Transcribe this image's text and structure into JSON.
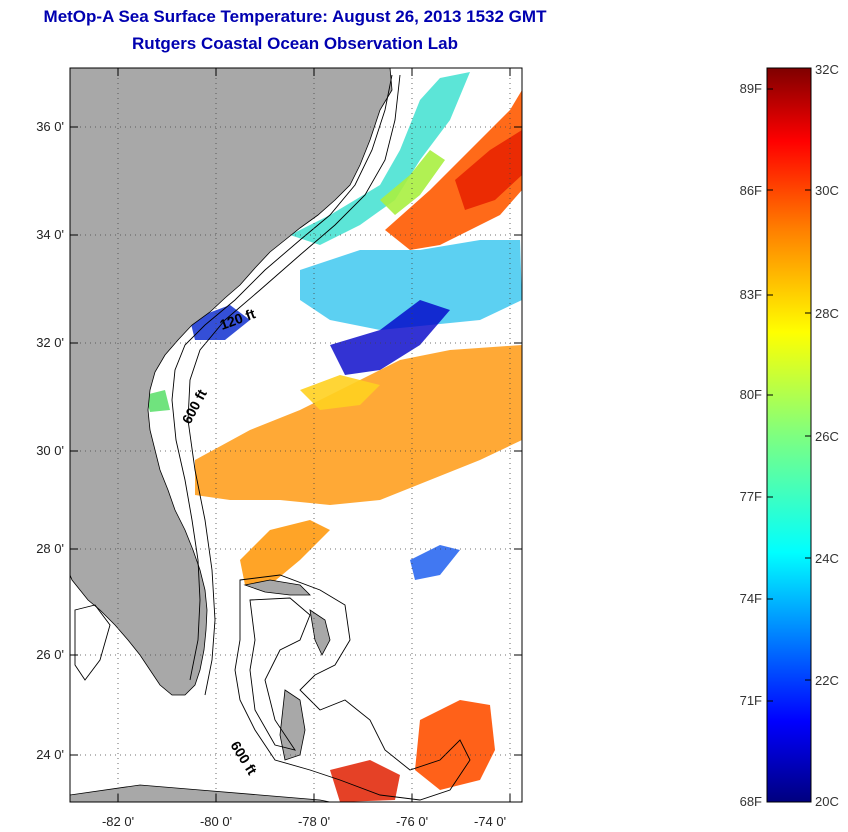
{
  "header": {
    "title_line1": "MetOp-A Sea Surface Temperature:  August 26, 2013 1532 GMT",
    "title_line2": "Rutgers Coastal Ocean Observation Lab"
  },
  "map": {
    "lon_labels": [
      "-82 0'",
      "-80 0'",
      "-78 0'",
      "-76 0'",
      "-74 0'"
    ],
    "lat_labels": [
      "36 0'",
      "34 0'",
      "32 0'",
      "30 0'",
      "28 0'",
      "26 0'",
      "24 0'"
    ],
    "contour_labels": [
      "120 ft",
      "600 ft",
      "600 ft"
    ],
    "colors": {
      "land": "#a8a8a8",
      "cloud": "#ffffff",
      "outline": "#000000"
    }
  },
  "colorbar": {
    "range_celsius": [
      20,
      32
    ],
    "fahrenheit_labels": [
      "89F",
      "86F",
      "83F",
      "80F",
      "77F",
      "74F",
      "71F",
      "68F"
    ],
    "celsius_labels": [
      "32C",
      "30C",
      "28C",
      "26C",
      "24C",
      "22C",
      "20C"
    ],
    "colormap": "jet",
    "color_stops": [
      "#00007f",
      "#0000ff",
      "#007fff",
      "#00ffff",
      "#7fff7f",
      "#ffff00",
      "#ff7f00",
      "#ff0000",
      "#7f0000"
    ]
  }
}
